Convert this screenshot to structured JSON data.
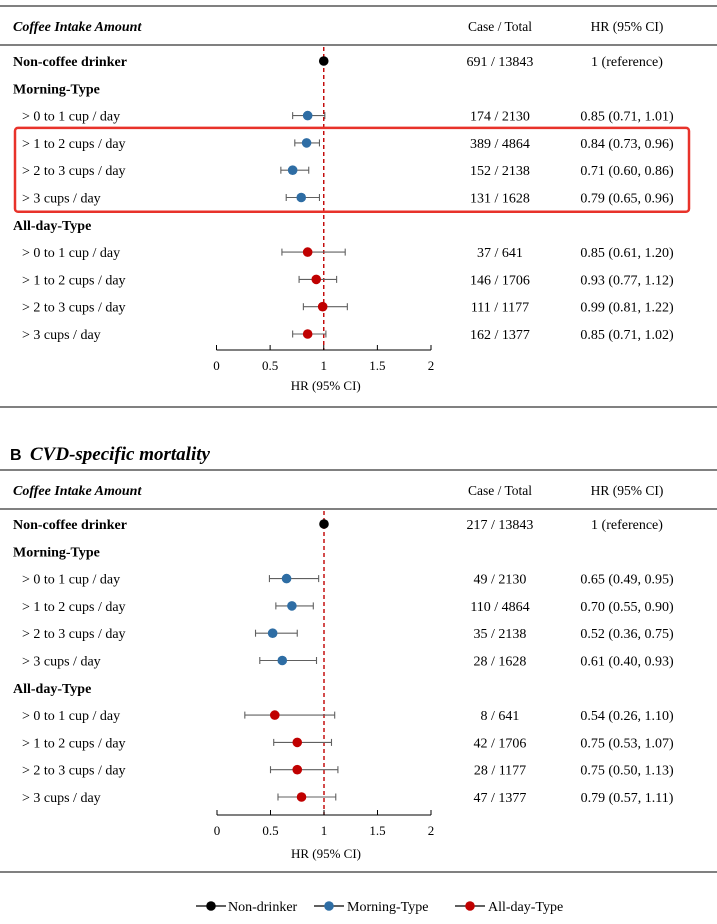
{
  "colors": {
    "non_drinker": "#000000",
    "morning": "#2e6da4",
    "allday": "#c00000",
    "highlight": "#e8322a",
    "reference_line": "#c00000",
    "whisker": "#606060"
  },
  "panel_b": {
    "letter": "B",
    "title": "CVD-specific mortality"
  },
  "legend": [
    {
      "key": "non_drinker",
      "label": "Non-drinker"
    },
    {
      "key": "morning",
      "label": "Morning-Type"
    },
    {
      "key": "allday",
      "label": "All-day-Type"
    }
  ],
  "chart_data": [
    {
      "type": "forest",
      "panel": "A",
      "header": {
        "label_col": "Coffee Intake Amount",
        "case_col": "Case / Total",
        "hr_col": "HR (95% CI)"
      },
      "xlabel": "HR (95% CI)",
      "xlim": [
        0,
        2
      ],
      "xticks": [
        "0",
        "0.5",
        "1",
        "1.5",
        "2"
      ],
      "reference": 1,
      "rows": [
        {
          "kind": "data",
          "label": "Non-coffee drinker",
          "bold": true,
          "group": "non_drinker",
          "hr": 1,
          "lo": 1,
          "hi": 1,
          "case": "691 / 13843",
          "hr_text": "1 (reference)"
        },
        {
          "kind": "section",
          "label": "Morning-Type"
        },
        {
          "kind": "data",
          "label": "> 0 to 1 cup / day",
          "group": "morning",
          "hr": 0.85,
          "lo": 0.71,
          "hi": 1.01,
          "case": "174 / 2130",
          "hr_text": "0.85 (0.71, 1.01)"
        },
        {
          "kind": "data",
          "label": "> 1 to 2 cups / day",
          "group": "morning",
          "hr": 0.84,
          "lo": 0.73,
          "hi": 0.96,
          "case": "389 / 4864",
          "hr_text": "0.84 (0.73, 0.96)"
        },
        {
          "kind": "data",
          "label": "> 2 to 3 cups / day",
          "group": "morning",
          "hr": 0.71,
          "lo": 0.6,
          "hi": 0.86,
          "case": "152 / 2138",
          "hr_text": "0.71 (0.60, 0.86)"
        },
        {
          "kind": "data",
          "label": "> 3 cups / day",
          "group": "morning",
          "hr": 0.79,
          "lo": 0.65,
          "hi": 0.96,
          "case": "131 / 1628",
          "hr_text": "0.79 (0.65, 0.96)"
        },
        {
          "kind": "section",
          "label": "All-day-Type"
        },
        {
          "kind": "data",
          "label": "> 0 to 1 cup / day",
          "group": "allday",
          "hr": 0.85,
          "lo": 0.61,
          "hi": 1.2,
          "case": "37 / 641",
          "hr_text": "0.85 (0.61, 1.20)"
        },
        {
          "kind": "data",
          "label": "> 1 to 2 cups / day",
          "group": "allday",
          "hr": 0.93,
          "lo": 0.77,
          "hi": 1.12,
          "case": "146 / 1706",
          "hr_text": "0.93 (0.77, 1.12)"
        },
        {
          "kind": "data",
          "label": "> 2 to 3 cups / day",
          "group": "allday",
          "hr": 0.99,
          "lo": 0.81,
          "hi": 1.22,
          "case": "111 / 1177",
          "hr_text": "0.99 (0.81, 1.22)"
        },
        {
          "kind": "data",
          "label": "> 3 cups / day",
          "group": "allday",
          "hr": 0.85,
          "lo": 0.71,
          "hi": 1.02,
          "case": "162 / 1377",
          "hr_text": "0.85 (0.71, 1.02)"
        }
      ],
      "highlight_rows": [
        3,
        6
      ]
    },
    {
      "type": "forest",
      "panel": "B",
      "header": {
        "label_col": "Coffee Intake Amount",
        "case_col": "Case / Total",
        "hr_col": "HR (95% CI)"
      },
      "xlabel": "HR (95% CI)",
      "xlim": [
        0,
        2
      ],
      "xticks": [
        "0",
        "0.5",
        "1",
        "1.5",
        "2"
      ],
      "reference": 1,
      "rows": [
        {
          "kind": "data",
          "label": "Non-coffee drinker",
          "bold": true,
          "group": "non_drinker",
          "hr": 1,
          "lo": 1,
          "hi": 1,
          "case": "217 / 13843",
          "hr_text": "1 (reference)"
        },
        {
          "kind": "section",
          "label": "Morning-Type"
        },
        {
          "kind": "data",
          "label": "> 0 to 1 cup / day",
          "group": "morning",
          "hr": 0.65,
          "lo": 0.49,
          "hi": 0.95,
          "case": "49 / 2130",
          "hr_text": "0.65 (0.49, 0.95)"
        },
        {
          "kind": "data",
          "label": "> 1 to 2 cups / day",
          "group": "morning",
          "hr": 0.7,
          "lo": 0.55,
          "hi": 0.9,
          "case": "110 / 4864",
          "hr_text": "0.70 (0.55, 0.90)"
        },
        {
          "kind": "data",
          "label": "> 2 to 3 cups / day",
          "group": "morning",
          "hr": 0.52,
          "lo": 0.36,
          "hi": 0.75,
          "case": "35 / 2138",
          "hr_text": "0.52 (0.36, 0.75)"
        },
        {
          "kind": "data",
          "label": "> 3 cups / day",
          "group": "morning",
          "hr": 0.61,
          "lo": 0.4,
          "hi": 0.93,
          "case": "28 / 1628",
          "hr_text": "0.61 (0.40, 0.93)"
        },
        {
          "kind": "section",
          "label": "All-day-Type"
        },
        {
          "kind": "data",
          "label": "> 0 to 1 cup / day",
          "group": "allday",
          "hr": 0.54,
          "lo": 0.26,
          "hi": 1.1,
          "case": "8 / 641",
          "hr_text": "0.54 (0.26, 1.10)"
        },
        {
          "kind": "data",
          "label": "> 1 to 2 cups / day",
          "group": "allday",
          "hr": 0.75,
          "lo": 0.53,
          "hi": 1.07,
          "case": "42 / 1706",
          "hr_text": "0.75 (0.53, 1.07)"
        },
        {
          "kind": "data",
          "label": "> 2 to 3 cups / day",
          "group": "allday",
          "hr": 0.75,
          "lo": 0.5,
          "hi": 1.13,
          "case": "28 / 1177",
          "hr_text": "0.75 (0.50, 1.13)"
        },
        {
          "kind": "data",
          "label": "> 3 cups / day",
          "group": "allday",
          "hr": 0.79,
          "lo": 0.57,
          "hi": 1.11,
          "case": "47 / 1377",
          "hr_text": "0.79 (0.57, 1.11)"
        }
      ]
    }
  ]
}
